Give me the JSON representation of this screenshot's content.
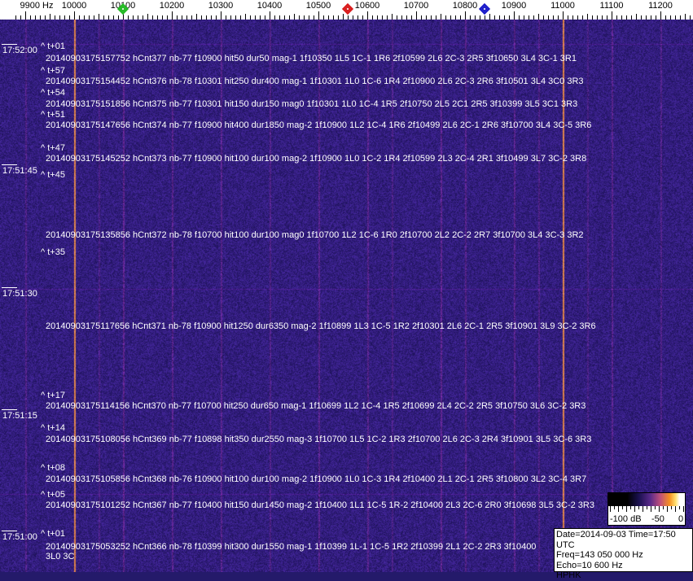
{
  "axis": {
    "unit_label": "9900 Hz",
    "freq_min": 9880,
    "freq_max": 11280,
    "labels": [
      "10000",
      "10100",
      "10200",
      "10300",
      "10400",
      "10500",
      "10600",
      "10700",
      "10800",
      "10900",
      "11000",
      "11100",
      "11200"
    ],
    "markers": [
      {
        "name": "green-marker",
        "freq": 10100,
        "color": "#1fb81f"
      },
      {
        "name": "red-marker",
        "freq": 10560,
        "color": "#d81818"
      },
      {
        "name": "blue-marker",
        "freq": 10840,
        "color": "#1818c8"
      }
    ]
  },
  "colors": {
    "background": "#241a6a",
    "strong_line": "#e0883a",
    "weak_line": "#7a2a8a",
    "text": "#ffffff"
  },
  "time_labels": [
    "17:52:00",
    "17:51:45",
    "17:51:30",
    "17:51:15",
    "17:51:00"
  ],
  "t_labels": [
    "^ t+01",
    "^ t+57",
    "^ t+54",
    "^ t+51",
    "^ t+47",
    "^ t+45",
    "^ t+35",
    "^ t+17",
    "^ t+14",
    "^ t+08",
    "^ t+05",
    "^ t+01"
  ],
  "detections": [
    "20140903175157752 hCnt377 nb-77 f10900 hit50 dur50 mag-1 1f10350 1L5 1C-1 1R6 2f10599 2L6 2C-3 2R5 3f10650 3L4 3C-1 3R1",
    "20140903175154452 hCnt376 nb-78 f10301 hit250 dur400 mag-1 1f10301 1L0 1C-6 1R4 2f10900 2L6 2C-3 2R6 3f10501 3L4 3C0 3R3",
    "20140903175151856 hCnt375 nb-77 f10301 hit150 dur150 mag0 1f10301 1L0 1C-4 1R5 2f10750 2L5 2C1 2R5 3f10399 3L5 3C1 3R3",
    "20140903175147656 hCnt374 nb-77 f10900 hit400 dur1850 mag-2 1f10900 1L2 1C-4 1R6 2f10499 2L6 2C-1 2R6 3f10700 3L4 3C-5 3R6",
    "20140903175145252 hCnt373 nb-77 f10900 hit100 dur100 mag-2 1f10900 1L0 1C-2 1R4 2f10599 2L3 2C-4 2R1 3f10499 3L7 3C-2 3R8",
    "20140903175135856 hCnt372 nb-78 f10700 hit100 dur100 mag0 1f10700 1L2 1C-6 1R0 2f10700 2L2 2C-2 2R7 3f10700 3L4 3C-3 3R2",
    "20140903175117656 hCnt371 nb-78 f10900 hit1250 dur6350 mag-2 1f10899 1L3 1C-5 1R2 2f10301 2L6 2C-1 2R5 3f10901 3L9 3C-2 3R6",
    "20140903175114156 hCnt370 nb-77 f10700 hit250 dur650 mag-1 1f10699 1L2 1C-4 1R5 2f10699 2L4 2C-2 2R5 3f10750 3L6 3C-2 3R3",
    "20140903175108056 hCnt369 nb-77 f10898 hit350 dur2550 mag-3 1f10700 1L5 1C-2 1R3 2f10700 2L6 2C-3 2R4 3f10901 3L5 3C-6 3R3",
    "20140903175105856 hCnt368 nb-76 f10900 hit100 dur100 mag-2 1f10900 1L0 1C-3 1R4 2f10400 2L1 2C-1 2R5 3f10800 3L2 3C-4 3R7",
    "20140903175101252 hCnt367 nb-77 f10400 hit150 dur1450 mag-2 1f10400 1L1 1C-5 1R-2 2f10400 2L3 2C-6 2R0 3f10698 3L5 3C-2 3R3",
    "20140903175053252 hCnt366 nb-78 f10399 hit300 dur1550 mag-1 1f10399 1L-1 1C-5 1R2 2f10399 2L1 2C-2 2R3 3f10400 3L0 3C"
  ],
  "legend": {
    "labels": [
      "-100 dB",
      "-50",
      "0"
    ]
  },
  "info": {
    "date_time": "Date=2014-09-03 Time=17:50 UTC",
    "freq": "Freq=143 050 000 Hz",
    "echo": "Echo=10 600 Hz",
    "station": "HPHK"
  }
}
